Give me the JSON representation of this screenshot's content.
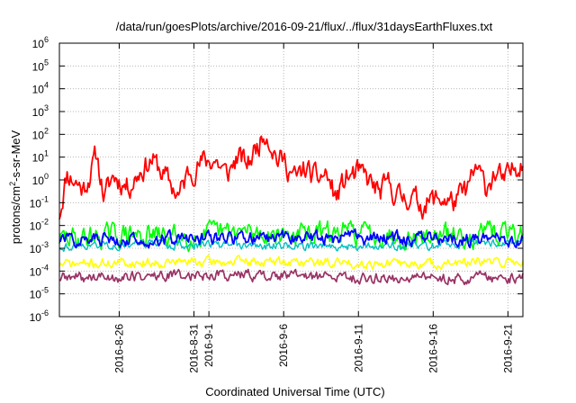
{
  "chart_data": {
    "type": "line",
    "title": "/data/run/goesPlots/archive/2016-09-21/flux/../flux/31daysEarthFluxes.txt",
    "xlabel": "Coordinated Universal Time (UTC)",
    "ylabel": "protons/cm²-s-sr-MeV",
    "ylabel_parts": {
      "base": "protons/cm",
      "sup": "2",
      "rest": "-s-sr-MeV"
    },
    "y_scale": "log",
    "ylim_exp": [
      -6,
      6
    ],
    "y_ticks": [
      {
        "base": "10",
        "exp": "-6",
        "e": -6
      },
      {
        "base": "10",
        "exp": "-5",
        "e": -5
      },
      {
        "base": "10",
        "exp": "-4",
        "e": -4
      },
      {
        "base": "10",
        "exp": "-3",
        "e": -3
      },
      {
        "base": "10",
        "exp": "-2",
        "e": -2
      },
      {
        "base": "10",
        "exp": "-1",
        "e": -1
      },
      {
        "base": "10",
        "exp": "0",
        "e": 0
      },
      {
        "base": "10",
        "exp": "1",
        "e": 1
      },
      {
        "base": "10",
        "exp": "2",
        "e": 2
      },
      {
        "base": "10",
        "exp": "3",
        "e": 3
      },
      {
        "base": "10",
        "exp": "4",
        "e": 4
      },
      {
        "base": "10",
        "exp": "5",
        "e": 5
      },
      {
        "base": "10",
        "exp": "6",
        "e": 6
      }
    ],
    "xlim_days": [
      0,
      31
    ],
    "x_ticks": [
      {
        "label": "2016-8-26",
        "d": 4
      },
      {
        "label": "2016-8-31",
        "d": 9
      },
      {
        "label": "2016-9-1",
        "d": 10
      },
      {
        "label": "2016-9-6",
        "d": 15
      },
      {
        "label": "2016-9-11",
        "d": 20
      },
      {
        "label": "2016-9-16",
        "d": 25
      },
      {
        "label": "2016-9-21",
        "d": 30
      }
    ],
    "grid": true,
    "legend": "none",
    "series": [
      {
        "color": "#ff0000",
        "seed": 11,
        "amp": 0.55,
        "width": 1.8,
        "knots": [
          [
            0,
            -1.5
          ],
          [
            0.5,
            0.3
          ],
          [
            1.6,
            -0.4
          ],
          [
            2,
            0.2
          ],
          [
            2.5,
            1.1
          ],
          [
            3,
            -0.8
          ],
          [
            3.6,
            0.2
          ],
          [
            4.6,
            -0.3
          ],
          [
            5.4,
            0.4
          ],
          [
            6.2,
            0.9
          ],
          [
            7,
            0.2
          ],
          [
            8,
            -0.7
          ],
          [
            8.6,
            0.3
          ],
          [
            9.6,
            0.8
          ],
          [
            10.4,
            0.9
          ],
          [
            11.2,
            0.2
          ],
          [
            11.9,
            1.0
          ],
          [
            12.6,
            0.7
          ],
          [
            13,
            1.2
          ],
          [
            13.8,
            2.2
          ],
          [
            14.6,
            0.9
          ],
          [
            15.1,
            0.8
          ],
          [
            15.8,
            0.0
          ],
          [
            16.4,
            0.5
          ],
          [
            17.2,
            0.0
          ],
          [
            17.8,
            0.3
          ],
          [
            18.5,
            -0.8
          ],
          [
            19.2,
            0.1
          ],
          [
            20,
            0.3
          ],
          [
            20.8,
            -0.1
          ],
          [
            21.4,
            -0.6
          ],
          [
            22,
            -0.2
          ],
          [
            22.8,
            -0.8
          ],
          [
            23.5,
            -0.7
          ],
          [
            24.2,
            -1.1
          ],
          [
            24.9,
            -0.9
          ],
          [
            25.6,
            -0.8
          ],
          [
            26.4,
            -1.0
          ],
          [
            27.2,
            -0.5
          ],
          [
            27.9,
            0.5
          ],
          [
            28.5,
            -0.3
          ],
          [
            29.1,
            0.3
          ],
          [
            29.8,
            -0.1
          ],
          [
            30.4,
            0.5
          ],
          [
            31,
            1.0
          ]
        ]
      },
      {
        "color": "#00ff00",
        "seed": 29,
        "amp": 0.5,
        "width": 1.6,
        "knots": [
          [
            0,
            -2.6
          ],
          [
            4,
            -2.4
          ],
          [
            8,
            -2.5
          ],
          [
            12,
            -2.3
          ],
          [
            16,
            -2.4
          ],
          [
            20,
            -2.3
          ],
          [
            24,
            -2.5
          ],
          [
            28,
            -2.4
          ],
          [
            31,
            -2.3
          ]
        ]
      },
      {
        "color": "#00c0c0",
        "seed": 43,
        "amp": 0.2,
        "width": 1.4,
        "knots": [
          [
            0,
            -2.9
          ],
          [
            6,
            -2.8
          ],
          [
            12,
            -2.9
          ],
          [
            18,
            -2.9
          ],
          [
            24,
            -2.9
          ],
          [
            31,
            -2.7
          ]
        ]
      },
      {
        "color": "#0000ff",
        "seed": 57,
        "amp": 0.3,
        "width": 1.8,
        "knots": [
          [
            0,
            -2.6
          ],
          [
            8,
            -2.6
          ],
          [
            16,
            -2.5
          ],
          [
            24,
            -2.6
          ],
          [
            31,
            -2.6
          ]
        ]
      },
      {
        "color": "#ffff00",
        "seed": 71,
        "amp": 0.22,
        "width": 1.6,
        "knots": [
          [
            0,
            -3.7
          ],
          [
            8,
            -3.6
          ],
          [
            16,
            -3.6
          ],
          [
            24,
            -3.7
          ],
          [
            31,
            -3.6
          ]
        ]
      },
      {
        "color": "#993366",
        "seed": 89,
        "amp": 0.25,
        "width": 1.7,
        "knots": [
          [
            0,
            -4.3
          ],
          [
            5,
            -4.25
          ],
          [
            10,
            -4.15
          ],
          [
            15,
            -4.2
          ],
          [
            20,
            -4.3
          ],
          [
            25,
            -4.3
          ],
          [
            31,
            -4.3
          ]
        ]
      }
    ]
  }
}
